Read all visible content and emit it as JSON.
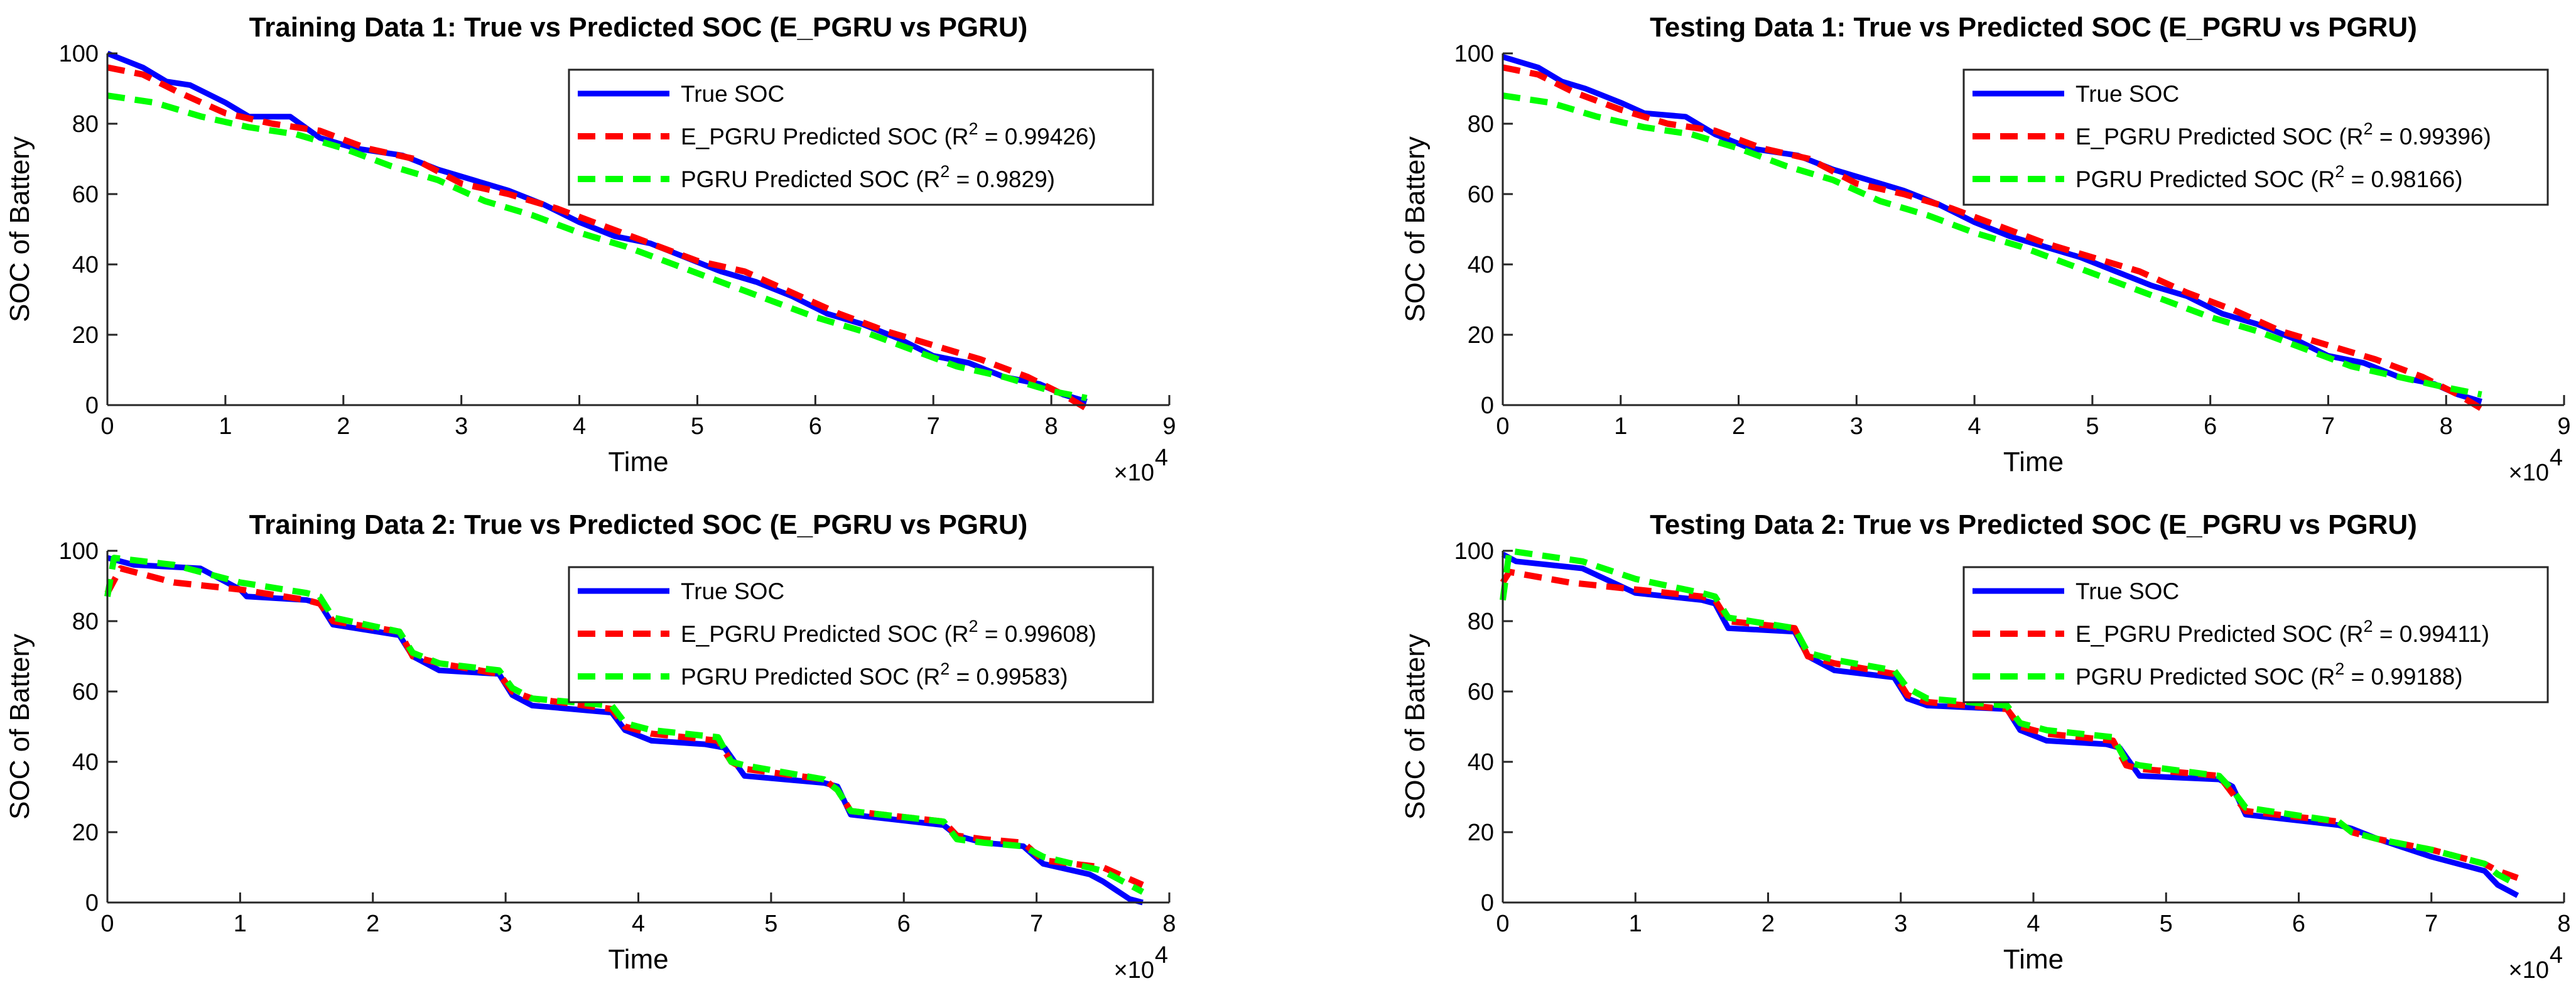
{
  "figure": {
    "background": "#ffffff",
    "colors": {
      "true": "#0000ff",
      "epgru": "#ff0000",
      "pgru": "#00ff00",
      "axis": "#262626"
    }
  },
  "chart_data": [
    {
      "type": "line",
      "title": "Training Data 1: True vs Predicted SOC (E_PGRU vs PGRU)",
      "xlabel": "Time",
      "ylabel": "SOC of Battery",
      "x_multiplier": "×10",
      "x_exponent": "4",
      "x_scale": 10000,
      "xlim": [
        0,
        9
      ],
      "ylim": [
        0,
        100
      ],
      "xticks": [
        0,
        1,
        2,
        3,
        4,
        5,
        6,
        7,
        8,
        9
      ],
      "yticks": [
        0,
        20,
        40,
        60,
        80,
        100
      ],
      "legend_position": "top-right",
      "legend": [
        {
          "label": "True SOC",
          "suffix": ""
        },
        {
          "label": "E_PGRU Predicted SOC (R",
          "sup": "2",
          "suffix": " = 0.99426)"
        },
        {
          "label": "PGRU Predicted SOC (R",
          "sup": "2",
          "suffix": " = 0.9829)"
        }
      ],
      "series": [
        {
          "name": "True SOC",
          "style": "solid",
          "x": [
            0,
            0.3,
            0.5,
            0.7,
            1.0,
            1.2,
            1.55,
            1.8,
            2.1,
            2.5,
            2.8,
            3.1,
            3.4,
            3.7,
            4.0,
            4.3,
            4.6,
            4.9,
            5.2,
            5.5,
            5.8,
            6.1,
            6.4,
            6.7,
            7.0,
            7.3,
            7.6,
            7.9,
            8.1,
            8.3
          ],
          "y": [
            100,
            96,
            92,
            91,
            86,
            82,
            82,
            76,
            73,
            71,
            67,
            64,
            61,
            57,
            52,
            48,
            46,
            42,
            38,
            35,
            31,
            26,
            23,
            19,
            14,
            12,
            8,
            6,
            3,
            1
          ]
        },
        {
          "name": "E_PGRU Predicted SOC",
          "style": "dashed",
          "x": [
            0,
            0.3,
            0.6,
            1.0,
            1.4,
            1.8,
            2.2,
            2.6,
            3.0,
            3.4,
            3.8,
            4.2,
            4.6,
            5.0,
            5.4,
            5.8,
            6.2,
            6.6,
            7.0,
            7.4,
            7.8,
            8.1,
            8.3
          ],
          "y": [
            96,
            94,
            89,
            83,
            80,
            78,
            73,
            70,
            63,
            60,
            56,
            51,
            46,
            41,
            38,
            32,
            26,
            21,
            17,
            13,
            8,
            3,
            -1
          ]
        },
        {
          "name": "PGRU Predicted SOC",
          "style": "dashed",
          "x": [
            0,
            0.4,
            0.8,
            1.2,
            1.6,
            2.0,
            2.4,
            2.8,
            3.2,
            3.6,
            4.0,
            4.4,
            4.8,
            5.2,
            5.6,
            6.0,
            6.4,
            6.8,
            7.2,
            7.6,
            8.0,
            8.3
          ],
          "y": [
            88,
            86,
            82,
            79,
            77,
            73,
            68,
            64,
            58,
            54,
            49,
            45,
            40,
            35,
            30,
            25,
            21,
            16,
            11,
            8,
            4,
            2
          ]
        }
      ]
    },
    {
      "type": "line",
      "title": "Testing Data 1: True vs Predicted SOC (E_PGRU vs PGRU)",
      "xlabel": "Time",
      "ylabel": "SOC of Battery",
      "x_multiplier": "×10",
      "x_exponent": "4",
      "x_scale": 10000,
      "xlim": [
        0,
        9
      ],
      "ylim": [
        0,
        100
      ],
      "xticks": [
        0,
        1,
        2,
        3,
        4,
        5,
        6,
        7,
        8,
        9
      ],
      "yticks": [
        0,
        20,
        40,
        60,
        80,
        100
      ],
      "legend_position": "top-right",
      "legend": [
        {
          "label": "True SOC",
          "suffix": ""
        },
        {
          "label": "E_PGRU Predicted SOC (R",
          "sup": "2",
          "suffix": " = 0.99396)"
        },
        {
          "label": "PGRU Predicted SOC (R",
          "sup": "2",
          "suffix": " = 0.98166)"
        }
      ],
      "series": [
        {
          "name": "True SOC",
          "style": "solid",
          "x": [
            0,
            0.3,
            0.5,
            0.7,
            1.0,
            1.2,
            1.55,
            1.8,
            2.1,
            2.5,
            2.8,
            3.1,
            3.4,
            3.7,
            4.0,
            4.3,
            4.6,
            4.9,
            5.2,
            5.5,
            5.8,
            6.1,
            6.4,
            6.7,
            7.0,
            7.3,
            7.6,
            7.9,
            8.1,
            8.3
          ],
          "y": [
            99,
            96,
            92,
            90,
            86,
            83,
            82,
            77,
            73,
            71,
            67,
            64,
            61,
            57,
            52,
            48,
            45,
            42,
            38,
            34,
            31,
            26,
            23,
            19,
            14,
            12,
            8,
            6,
            3,
            1
          ]
        },
        {
          "name": "E_PGRU Predicted SOC",
          "style": "dashed",
          "x": [
            0,
            0.3,
            0.6,
            1.0,
            1.4,
            1.8,
            2.2,
            2.6,
            3.0,
            3.4,
            3.8,
            4.2,
            4.6,
            5.0,
            5.4,
            5.8,
            6.2,
            6.6,
            7.0,
            7.4,
            7.8,
            8.1,
            8.3
          ],
          "y": [
            96,
            94,
            89,
            84,
            80,
            78,
            73,
            70,
            63,
            60,
            56,
            51,
            46,
            42,
            38,
            32,
            27,
            21,
            17,
            13,
            8,
            3,
            -1
          ]
        },
        {
          "name": "PGRU Predicted SOC",
          "style": "dashed",
          "x": [
            0,
            0.4,
            0.8,
            1.2,
            1.6,
            2.0,
            2.4,
            2.8,
            3.2,
            3.6,
            4.0,
            4.4,
            4.8,
            5.2,
            5.6,
            6.0,
            6.4,
            6.8,
            7.2,
            7.6,
            8.0,
            8.3
          ],
          "y": [
            88,
            86,
            82,
            79,
            77,
            73,
            68,
            64,
            58,
            54,
            49,
            45,
            40,
            35,
            30,
            25,
            21,
            16,
            11,
            8,
            5,
            3
          ]
        }
      ]
    },
    {
      "type": "line",
      "title": "Training Data 2: True vs Predicted SOC (E_PGRU vs PGRU)",
      "xlabel": "Time",
      "ylabel": "SOC of Battery",
      "x_multiplier": "×10",
      "x_exponent": "4",
      "x_scale": 10000,
      "xlim": [
        0,
        8
      ],
      "ylim": [
        0,
        100
      ],
      "xticks": [
        0,
        1,
        2,
        3,
        4,
        5,
        6,
        7,
        8
      ],
      "yticks": [
        0,
        20,
        40,
        60,
        80,
        100
      ],
      "legend_position": "top-right",
      "legend": [
        {
          "label": "True SOC",
          "suffix": ""
        },
        {
          "label": "E_PGRU Predicted SOC (R",
          "sup": "2",
          "suffix": " = 0.99608)"
        },
        {
          "label": "PGRU Predicted SOC (R",
          "sup": "2",
          "suffix": " = 0.99583)"
        }
      ],
      "series": [
        {
          "name": "True SOC",
          "style": "solid",
          "x": [
            0,
            0.2,
            0.7,
            1.0,
            1.05,
            1.5,
            1.6,
            1.7,
            2.2,
            2.3,
            2.5,
            2.95,
            3.05,
            3.2,
            3.8,
            3.9,
            4.1,
            4.5,
            4.65,
            4.8,
            5.4,
            5.5,
            5.6,
            6.3,
            6.4,
            6.6,
            6.9,
            7.05,
            7.4,
            7.5,
            7.7,
            7.8
          ],
          "y": [
            98,
            96,
            95,
            89,
            87,
            86,
            85,
            79,
            76,
            70,
            66,
            65,
            59,
            56,
            54,
            49,
            46,
            45,
            44,
            36,
            34,
            33,
            25,
            22,
            19,
            17,
            16,
            11,
            8,
            6,
            1,
            0
          ]
        },
        {
          "name": "E_PGRU Predicted SOC",
          "style": "dashed",
          "x": [
            0,
            0.1,
            0.5,
            1.0,
            1.5,
            1.6,
            1.7,
            2.2,
            2.3,
            2.5,
            2.95,
            3.05,
            3.2,
            3.8,
            3.9,
            4.1,
            4.6,
            4.7,
            4.8,
            5.4,
            5.5,
            5.6,
            6.3,
            6.4,
            6.6,
            6.9,
            7.05,
            7.5,
            7.8
          ],
          "y": [
            88,
            95,
            91,
            89,
            86,
            85,
            80,
            77,
            70,
            68,
            65,
            60,
            58,
            55,
            50,
            48,
            46,
            40,
            38,
            35,
            32,
            26,
            23,
            19,
            18,
            17,
            12,
            10,
            5
          ]
        },
        {
          "name": "PGRU Predicted SOC",
          "style": "dashed",
          "x": [
            0,
            0.05,
            0.5,
            1.0,
            1.5,
            1.6,
            1.7,
            2.2,
            2.3,
            2.5,
            2.95,
            3.05,
            3.2,
            3.8,
            3.9,
            4.1,
            4.6,
            4.7,
            4.8,
            5.4,
            5.5,
            5.6,
            6.3,
            6.4,
            6.6,
            6.9,
            7.05,
            7.5,
            7.8
          ],
          "y": [
            87,
            98,
            96,
            91,
            88,
            87,
            81,
            77,
            71,
            68,
            66,
            61,
            58,
            56,
            51,
            49,
            47,
            40,
            39,
            35,
            32,
            26,
            23,
            18,
            17,
            16,
            13,
            9,
            3
          ]
        }
      ]
    },
    {
      "type": "line",
      "title": "Testing Data 2: True vs Predicted SOC (E_PGRU vs PGRU)",
      "xlabel": "Time",
      "ylabel": "SOC of Battery",
      "x_multiplier": "×10",
      "x_exponent": "4",
      "x_scale": 10000,
      "xlim": [
        0,
        8
      ],
      "ylim": [
        0,
        100
      ],
      "xticks": [
        0,
        1,
        2,
        3,
        4,
        5,
        6,
        7,
        8
      ],
      "yticks": [
        0,
        20,
        40,
        60,
        80,
        100
      ],
      "legend_position": "top-right",
      "legend": [
        {
          "label": "True SOC",
          "suffix": ""
        },
        {
          "label": "E_PGRU Predicted SOC (R",
          "sup": "2",
          "suffix": " = 0.99411)"
        },
        {
          "label": "PGRU Predicted SOC (R",
          "sup": "2",
          "suffix": " = 0.99188)"
        }
      ],
      "series": [
        {
          "name": "True SOC",
          "style": "solid",
          "x": [
            0,
            0.1,
            0.6,
            1.0,
            1.5,
            1.6,
            1.7,
            2.2,
            2.3,
            2.5,
            2.95,
            3.05,
            3.2,
            3.8,
            3.9,
            4.1,
            4.55,
            4.65,
            4.8,
            5.4,
            5.5,
            5.6,
            6.3,
            6.4,
            6.6,
            7.0,
            7.4,
            7.5,
            7.65
          ],
          "y": [
            99,
            97,
            95,
            88,
            86,
            85,
            78,
            77,
            70,
            66,
            64,
            58,
            56,
            55,
            49,
            46,
            45,
            44,
            36,
            35,
            33,
            25,
            22,
            21,
            18,
            13,
            9,
            5,
            2
          ]
        },
        {
          "name": "E_PGRU Predicted SOC",
          "style": "dashed",
          "x": [
            0,
            0.05,
            0.5,
            1.0,
            1.5,
            1.6,
            1.7,
            2.2,
            2.3,
            2.5,
            2.95,
            3.05,
            3.2,
            3.8,
            3.9,
            4.1,
            4.6,
            4.7,
            4.8,
            5.4,
            5.5,
            5.6,
            6.3,
            6.4,
            6.6,
            7.0,
            7.4,
            7.5,
            7.65
          ],
          "y": [
            91,
            94,
            91,
            89,
            87,
            86,
            80,
            78,
            70,
            68,
            65,
            59,
            57,
            55,
            50,
            48,
            46,
            39,
            38,
            36,
            31,
            26,
            23,
            20,
            18,
            15,
            11,
            9,
            7
          ]
        },
        {
          "name": "PGRU Predicted SOC",
          "style": "dashed",
          "x": [
            0,
            0.05,
            0.6,
            1.0,
            1.5,
            1.6,
            1.7,
            2.2,
            2.3,
            2.5,
            2.95,
            3.05,
            3.2,
            3.8,
            3.9,
            4.1,
            4.6,
            4.7,
            4.8,
            5.4,
            5.5,
            5.6,
            6.3,
            6.4,
            6.6,
            7.0,
            7.4,
            7.5,
            7.65
          ],
          "y": [
            86,
            100,
            97,
            92,
            88,
            87,
            81,
            78,
            71,
            69,
            66,
            61,
            58,
            56,
            51,
            49,
            47,
            40,
            39,
            36,
            32,
            27,
            23,
            20,
            18,
            15,
            11,
            8,
            5
          ]
        }
      ]
    }
  ]
}
